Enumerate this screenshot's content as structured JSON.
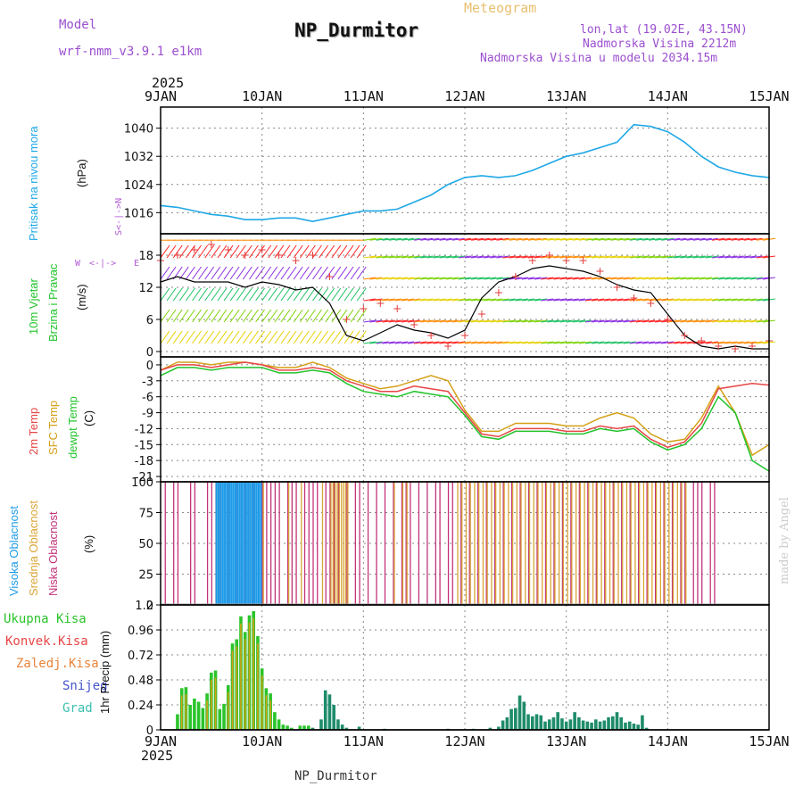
{
  "header": {
    "model_label": "Model",
    "model_name": "wrf-nmm_v3.9.1 e1km",
    "title": "NP_Durmitor",
    "meteogram": "Meteogram",
    "lonlat": "lon,lat (19.02E, 43.15N)",
    "altitude": "Nadmorska Visina 2212m",
    "altitude_model": "Nadmorska Visina u modelu 2034.15m",
    "year_top": "2025",
    "year_bottom": "2025",
    "footer_name": "NP_Durmitor",
    "credit": "made by Angel"
  },
  "colors": {
    "pressure": "#1fa8e6",
    "wind_speed": "#000000",
    "gust": "#e23b3b",
    "temp2m": "#e84545",
    "sfc_temp": "#d4a017",
    "dewpt": "#22c42b",
    "high_cloud": "#1e9be8",
    "mid_cloud": "#d9a536",
    "low_cloud": "#c2337a",
    "total_precip": "#2ac42a",
    "snow": "#4455cc",
    "grad": "#3cc0b0"
  },
  "chart_data": [
    {
      "type": "line",
      "panel": "pressure",
      "ylabel": "Pritisak na nivou mora",
      "unit": "(hPa)",
      "x_unit": "hours since 2025-01-09 00:00",
      "ylim": [
        1010,
        1046
      ],
      "yticks": [
        "1016",
        "1024",
        "1032",
        "1040"
      ],
      "xticks": [
        "9JAN",
        "10JAN",
        "11JAN",
        "12JAN",
        "13JAN",
        "14JAN",
        "15JAN"
      ],
      "series": [
        {
          "name": "pressure",
          "x": [
            0,
            4,
            8,
            12,
            16,
            20,
            24,
            28,
            32,
            36,
            40,
            44,
            48,
            52,
            56,
            60,
            64,
            68,
            72,
            76,
            80,
            84,
            88,
            92,
            96,
            100,
            104,
            108,
            112,
            116,
            120,
            124,
            128,
            132,
            136,
            140,
            144
          ],
          "values": [
            1018,
            1017.5,
            1016.5,
            1015.5,
            1015,
            1014,
            1014,
            1014.5,
            1014.5,
            1013.5,
            1014.5,
            1015.5,
            1016.5,
            1016.5,
            1017,
            1019,
            1021,
            1024,
            1026,
            1026.5,
            1026,
            1026.5,
            1028,
            1030,
            1032,
            1033,
            1034.5,
            1036,
            1041,
            1040.5,
            1039,
            1036,
            1032,
            1029,
            1027.5,
            1026.5,
            1026
          ]
        }
      ]
    },
    {
      "type": "line",
      "panel": "wind",
      "ylabel": "10m Vjetar Brzina i Pravac",
      "unit": "(m/s)",
      "compass_labels": [
        "N",
        "E",
        "S",
        "W"
      ],
      "x_unit": "hours since 2025-01-09 00:00",
      "ylim": [
        -1,
        22
      ],
      "yticks": [
        "0",
        "6",
        "12",
        "18"
      ],
      "series": [
        {
          "name": "speed",
          "x": [
            0,
            4,
            8,
            12,
            16,
            20,
            24,
            28,
            32,
            36,
            40,
            44,
            48,
            52,
            56,
            60,
            64,
            68,
            72,
            76,
            80,
            84,
            88,
            92,
            96,
            100,
            104,
            108,
            112,
            116,
            120,
            124,
            128,
            132,
            136,
            140,
            144
          ],
          "values": [
            13,
            14,
            13,
            13,
            13,
            12,
            13,
            12.5,
            11.5,
            12,
            9,
            3,
            2,
            3.5,
            5,
            4,
            3.5,
            2.5,
            4,
            10,
            13,
            14,
            15.5,
            16,
            15.5,
            15,
            14,
            12.5,
            11.5,
            11,
            7,
            3,
            1,
            0.5,
            1,
            0.5,
            0.5
          ]
        },
        {
          "name": "gust",
          "x": [
            0,
            4,
            8,
            12,
            16,
            20,
            24,
            28,
            32,
            36,
            40,
            44,
            48,
            52,
            56,
            60,
            64,
            68,
            72,
            76,
            80,
            84,
            88,
            92,
            96,
            100,
            104,
            108,
            112,
            116,
            120,
            124,
            128,
            132,
            136,
            140,
            144
          ],
          "values": [
            17,
            18,
            19,
            20,
            19,
            18,
            19,
            18,
            17,
            18,
            14,
            6,
            8,
            9,
            8,
            5,
            3,
            1,
            3,
            7,
            11,
            14,
            17,
            18,
            17,
            17,
            15,
            12,
            10,
            9,
            6,
            3,
            2,
            1,
            0.5,
            1,
            2
          ]
        }
      ]
    },
    {
      "type": "line",
      "panel": "temperature",
      "ylabels": [
        "2m Temp",
        "SFC Temp",
        "dewpt Temp"
      ],
      "unit": "(C)",
      "x_unit": "hours since 2025-01-09 00:00",
      "ylim": [
        -22,
        1.5
      ],
      "yticks": [
        "0",
        "-3",
        "-6",
        "-9",
        "-12",
        "-15",
        "-18",
        "-21"
      ],
      "series": [
        {
          "name": "2m Temp",
          "x": [
            0,
            4,
            8,
            12,
            16,
            20,
            24,
            28,
            32,
            36,
            40,
            44,
            48,
            52,
            56,
            60,
            64,
            68,
            72,
            76,
            80,
            84,
            88,
            92,
            96,
            100,
            104,
            108,
            112,
            116,
            120,
            124,
            128,
            132,
            136,
            140,
            144
          ],
          "values": [
            -1,
            0,
            0,
            -0.5,
            0,
            0.5,
            0,
            -1,
            -1,
            -0.5,
            -1,
            -3,
            -4,
            -5,
            -5,
            -4,
            -4.5,
            -5,
            -9,
            -13,
            -13.5,
            -12,
            -12,
            -12,
            -12.5,
            -12.5,
            -11.5,
            -12,
            -11.5,
            -14,
            -15.5,
            -14.5,
            -11,
            -4.5,
            -4,
            -3.5,
            -3.8
          ]
        },
        {
          "name": "SFC Temp",
          "x": [
            0,
            4,
            8,
            12,
            16,
            20,
            24,
            28,
            32,
            36,
            40,
            44,
            48,
            52,
            56,
            60,
            64,
            68,
            72,
            76,
            80,
            84,
            88,
            92,
            96,
            100,
            104,
            108,
            112,
            116,
            120,
            124,
            128,
            132,
            136,
            140,
            144
          ],
          "values": [
            -1,
            0.5,
            0.5,
            0,
            0.5,
            0.5,
            0,
            -0.5,
            -0.5,
            0.5,
            -0.5,
            -2.5,
            -3.5,
            -4.5,
            -4,
            -3,
            -2,
            -3,
            -8.5,
            -12.5,
            -12.5,
            -11,
            -11,
            -11,
            -11.5,
            -11.5,
            -10,
            -9,
            -10,
            -13,
            -14.5,
            -14,
            -10,
            -4,
            -9,
            -17,
            -15
          ]
        },
        {
          "name": "dewpt Temp",
          "x": [
            0,
            4,
            8,
            12,
            16,
            20,
            24,
            28,
            32,
            36,
            40,
            44,
            48,
            52,
            56,
            60,
            64,
            68,
            72,
            76,
            80,
            84,
            88,
            92,
            96,
            100,
            104,
            108,
            112,
            116,
            120,
            124,
            128,
            132,
            136,
            140,
            144
          ],
          "values": [
            -2,
            -0.5,
            -0.5,
            -1,
            -0.5,
            -0.5,
            -0.5,
            -1.5,
            -1.5,
            -1,
            -1.5,
            -3.5,
            -5,
            -5.5,
            -6,
            -5,
            -5.5,
            -6,
            -9.5,
            -13.5,
            -14,
            -12.5,
            -12.5,
            -12.5,
            -13,
            -13,
            -12,
            -12.5,
            -12,
            -14.5,
            -16,
            -15,
            -12,
            -6,
            -9,
            -18,
            -20
          ]
        }
      ]
    },
    {
      "type": "bar",
      "panel": "clouds",
      "ylabels": [
        "Visoka Oblacnost",
        "Srednja Oblacnost",
        "Niska Oblacnost"
      ],
      "unit": "(%)",
      "x_unit": "hours since 2025-01-09 00:00",
      "ylim": [
        0,
        100
      ],
      "yticks": [
        "0",
        "25",
        "50",
        "75",
        "100"
      ],
      "high_hours": [
        13,
        13.5,
        14,
        14.5,
        15,
        15.5,
        16,
        16.5,
        17,
        17.5,
        18,
        18.5,
        19,
        19.5,
        20,
        20.5,
        21,
        21.5,
        22,
        22.5,
        23,
        23.5
      ],
      "mid_hours": [
        13,
        21,
        24,
        30,
        33,
        38,
        40,
        40.5,
        41,
        41.5,
        42,
        42.5,
        43,
        43.5,
        44,
        55,
        57,
        58,
        70,
        71,
        72,
        73,
        74,
        75,
        76,
        77,
        78,
        79,
        80,
        81,
        82,
        83,
        84,
        85,
        86,
        87,
        88,
        89,
        90,
        91,
        92,
        93,
        94,
        95,
        96,
        97,
        98,
        99,
        100,
        101,
        102,
        103,
        104,
        105,
        106,
        107,
        108,
        109,
        110,
        111,
        112,
        113,
        114,
        115,
        116,
        117,
        118,
        119,
        120,
        121,
        122,
        123,
        124
      ],
      "low_hours": [
        1,
        3,
        4,
        7,
        8,
        11,
        12,
        13,
        14,
        16,
        18,
        19,
        20,
        21,
        22,
        24,
        25,
        26,
        27,
        28,
        30,
        31,
        32,
        34,
        35,
        36,
        37,
        39,
        40,
        41,
        42,
        44,
        46,
        47,
        49,
        51,
        53,
        55,
        57,
        58,
        59,
        61,
        63,
        65,
        66,
        68,
        69,
        71,
        73,
        75,
        77,
        79,
        81,
        83,
        85,
        87,
        89,
        91,
        93,
        95,
        97,
        99,
        101,
        103,
        105,
        107,
        109,
        111,
        113,
        115,
        117,
        119,
        121,
        123,
        124,
        126,
        127,
        128,
        130,
        131
      ]
    },
    {
      "type": "bar",
      "panel": "precip",
      "ylabels": [
        "Ukupna Kisa",
        "Konvek.Kisa",
        "Zaledj.Kisa",
        "Snijeg",
        "Grad"
      ],
      "unit": "1hr Precip (mm)",
      "x_unit": "hours since 2025-01-09 00:00",
      "ylim": [
        0,
        1.2
      ],
      "yticks": [
        "0",
        "0.24",
        "0.48",
        "0.72",
        "0.96",
        "1.2"
      ],
      "total": [
        [
          4,
          0.15
        ],
        [
          5,
          0.4
        ],
        [
          6,
          0.41
        ],
        [
          7,
          0.24
        ],
        [
          8,
          0.3
        ],
        [
          9,
          0.27
        ],
        [
          10,
          0.21
        ],
        [
          11,
          0.35
        ],
        [
          12,
          0.55
        ],
        [
          13,
          0.57
        ],
        [
          14,
          0.2
        ],
        [
          15,
          0.25
        ],
        [
          16,
          0.43
        ],
        [
          17,
          0.83
        ],
        [
          18,
          0.87
        ],
        [
          19,
          1.09
        ],
        [
          20,
          0.94
        ],
        [
          21,
          1.1
        ],
        [
          22,
          1.14
        ],
        [
          23,
          0.9
        ],
        [
          24,
          0.59
        ],
        [
          25,
          0.4
        ],
        [
          26,
          0.35
        ],
        [
          27,
          0.17
        ],
        [
          28,
          0.1
        ],
        [
          29,
          0.05
        ],
        [
          30,
          0.04
        ],
        [
          31,
          0.02
        ],
        [
          33,
          0.04
        ],
        [
          34,
          0.04
        ],
        [
          35,
          0.04
        ],
        [
          36,
          0.02
        ],
        [
          38,
          0.1
        ],
        [
          39,
          0.38
        ],
        [
          40,
          0.34
        ],
        [
          41,
          0.24
        ],
        [
          42,
          0.1
        ],
        [
          43,
          0.05
        ],
        [
          44,
          0.02
        ],
        [
          47,
          0.03
        ],
        [
          53,
          0.01
        ],
        [
          68,
          0.01
        ],
        [
          74,
          0.01
        ],
        [
          78,
          0.02
        ],
        [
          80,
          0.03
        ],
        [
          81,
          0.09
        ],
        [
          82,
          0.12
        ],
        [
          83,
          0.2
        ],
        [
          84,
          0.21
        ],
        [
          85,
          0.33
        ],
        [
          86,
          0.27
        ],
        [
          87,
          0.15
        ],
        [
          88,
          0.13
        ],
        [
          89,
          0.15
        ],
        [
          90,
          0.14
        ],
        [
          91,
          0.08
        ],
        [
          92,
          0.1
        ],
        [
          93,
          0.12
        ],
        [
          94,
          0.17
        ],
        [
          95,
          0.11
        ],
        [
          96,
          0.08
        ],
        [
          97,
          0.1
        ],
        [
          98,
          0.17
        ],
        [
          99,
          0.12
        ],
        [
          100,
          0.09
        ],
        [
          101,
          0.08
        ],
        [
          102,
          0.07
        ],
        [
          103,
          0.1
        ],
        [
          104,
          0.08
        ],
        [
          105,
          0.09
        ],
        [
          106,
          0.12
        ],
        [
          107,
          0.13
        ],
        [
          108,
          0.17
        ],
        [
          109,
          0.12
        ],
        [
          110,
          0.07
        ],
        [
          111,
          0.08
        ],
        [
          112,
          0.06
        ],
        [
          113,
          0.05
        ],
        [
          114,
          0.14
        ],
        [
          115,
          0.02
        ]
      ]
    }
  ]
}
